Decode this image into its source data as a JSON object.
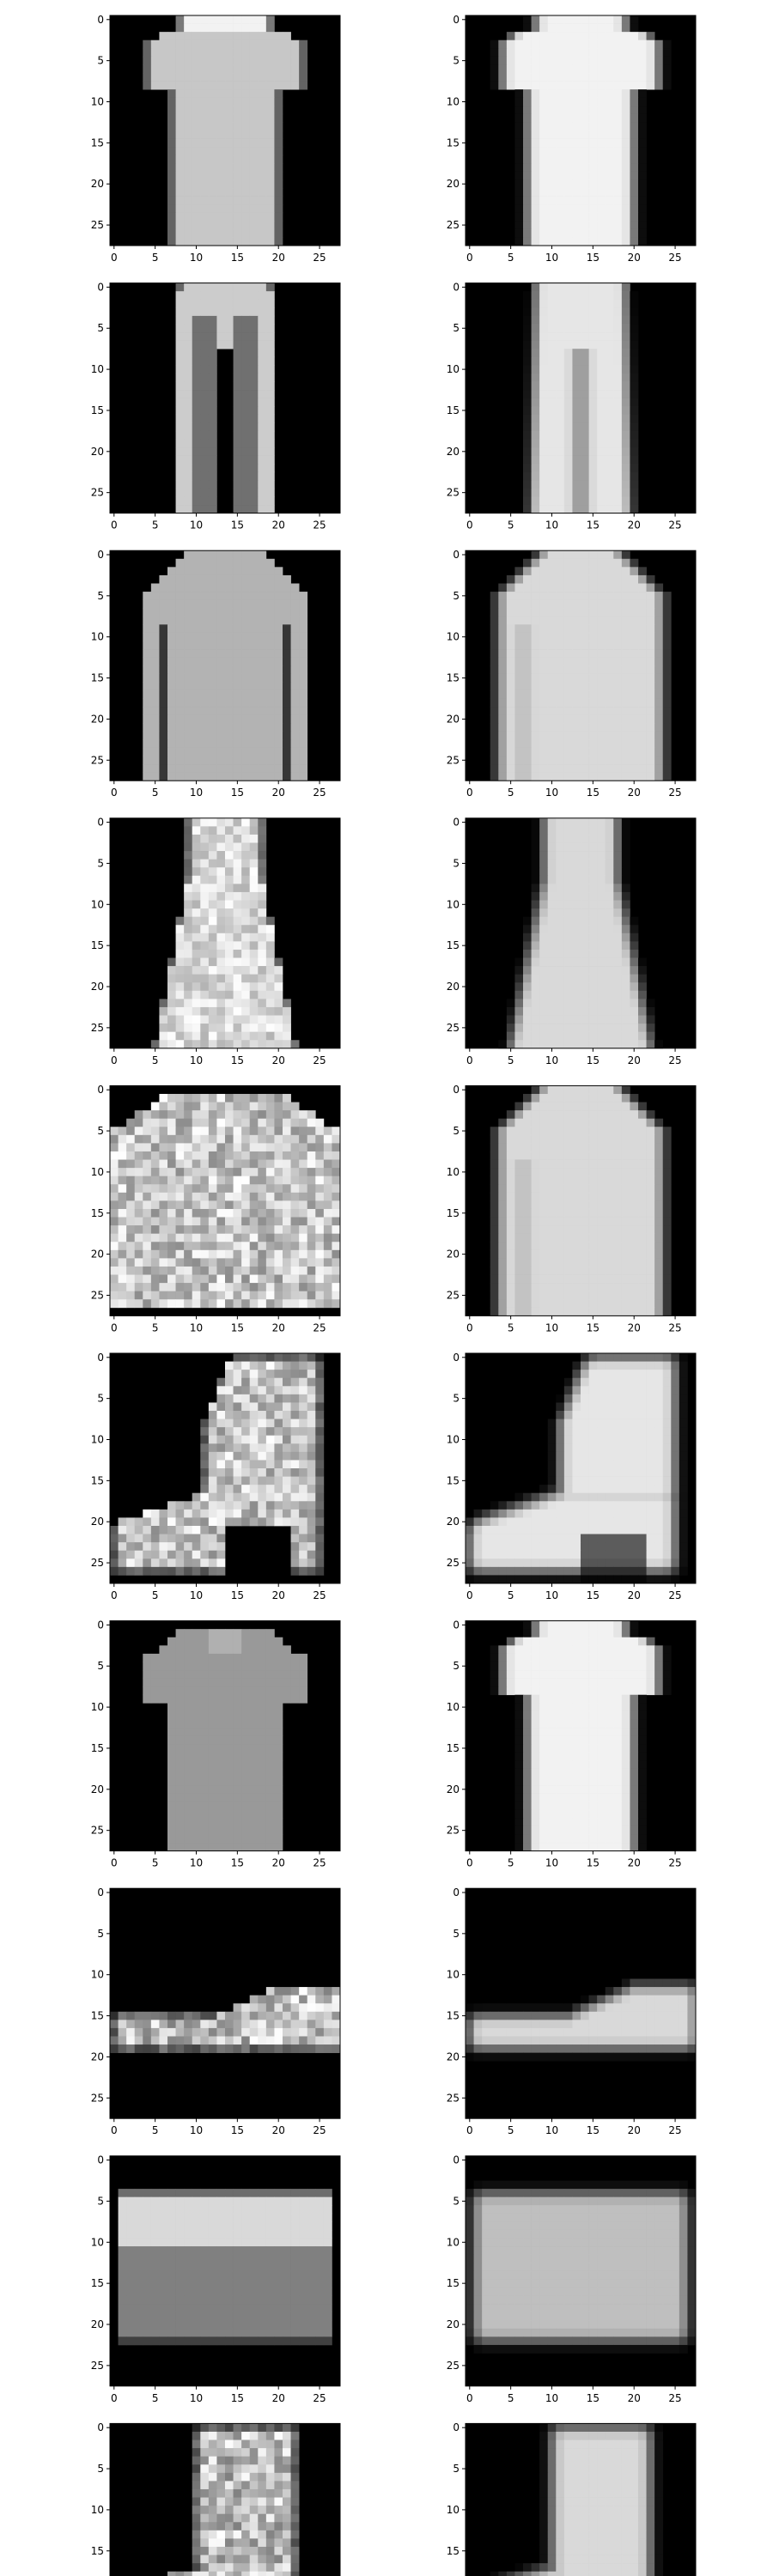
{
  "chart_data": {
    "type": "heatmap",
    "description_note": "",
    "layout": "10 rows x 2 columns of 28x28 grayscale image subplots (left: original, right: reconstruction)",
    "colormap": "gray",
    "background": "#ffffff",
    "axes": {
      "xlim": [
        -0.5,
        27.5
      ],
      "ylim": [
        27.5,
        -0.5
      ],
      "xticks": [
        0,
        5,
        10,
        15,
        20,
        25
      ],
      "yticks": [
        0,
        5,
        10,
        15,
        20,
        25
      ],
      "xtick_labels": [
        "0",
        "5",
        "10",
        "15",
        "20",
        "25"
      ],
      "ytick_labels": [
        "0",
        "5",
        "10",
        "15",
        "20",
        "25"
      ],
      "grid": false
    },
    "panels": [
      {
        "row": 0,
        "left": "tshirt",
        "right": "tshirt"
      },
      {
        "row": 1,
        "left": "trouser",
        "right": "trouser"
      },
      {
        "row": 2,
        "left": "pullover",
        "right": "pullover"
      },
      {
        "row": 3,
        "left": "dress",
        "right": "dress"
      },
      {
        "row": 4,
        "left": "coat",
        "right": "pullover"
      },
      {
        "row": 5,
        "left": "ankle_boot",
        "right": "ankle_boot"
      },
      {
        "row": 6,
        "left": "shirt",
        "right": "tshirt"
      },
      {
        "row": 7,
        "left": "sneaker",
        "right": "sneaker"
      },
      {
        "row": 8,
        "left": "bag",
        "right": "bag"
      },
      {
        "row": 9,
        "left": "boot",
        "right": "boot"
      }
    ]
  }
}
